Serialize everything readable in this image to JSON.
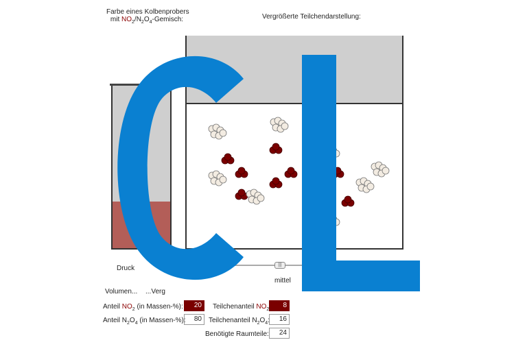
{
  "left_title": {
    "line1": "Farbe eines Kolbenprobers",
    "line2_pre": "mit ",
    "line2_no2": "NO",
    "line2_mid": "/N",
    "line2_n2o4": "O",
    "line2_post": "-Gemisch:"
  },
  "right_title": "Vergrößerte Teilchendarstellung:",
  "labels": {
    "druck": "Druck",
    "volumen": "Volumen...",
    "verg": "...Verg",
    "mittel": "mittel"
  },
  "rows": {
    "anteil_no2_label_pre": "Anteil ",
    "anteil_no2_label_red": "NO",
    "anteil_no2_label_post": " (in Massen-%):",
    "anteil_no2_value": "20",
    "anteil_n2o4_label_pre": "Anteil N",
    "anteil_n2o4_label_mid": "O",
    "anteil_n2o4_label_post": " (in Massen-%):",
    "anteil_n2o4_value": "80",
    "teil_no2_label_pre": "Teilchenanteil ",
    "teil_no2_label_red": "NO",
    "teil_no2_label_post": ":",
    "teil_no2_value": "8",
    "teil_n2o4_label_pre": "Teilchenanteil N",
    "teil_n2o4_label_mid": "O",
    "teil_n2o4_label_post": ":",
    "teil_n2o4_value": "16",
    "raum_label": "Benötigte Raumteile:",
    "raum_value": "24"
  },
  "logo_text": "CL",
  "colors": {
    "no2": "#7a0000",
    "n2o4": "#f3ece2",
    "gas": "#b35e58",
    "logo": "#0a80d1"
  }
}
